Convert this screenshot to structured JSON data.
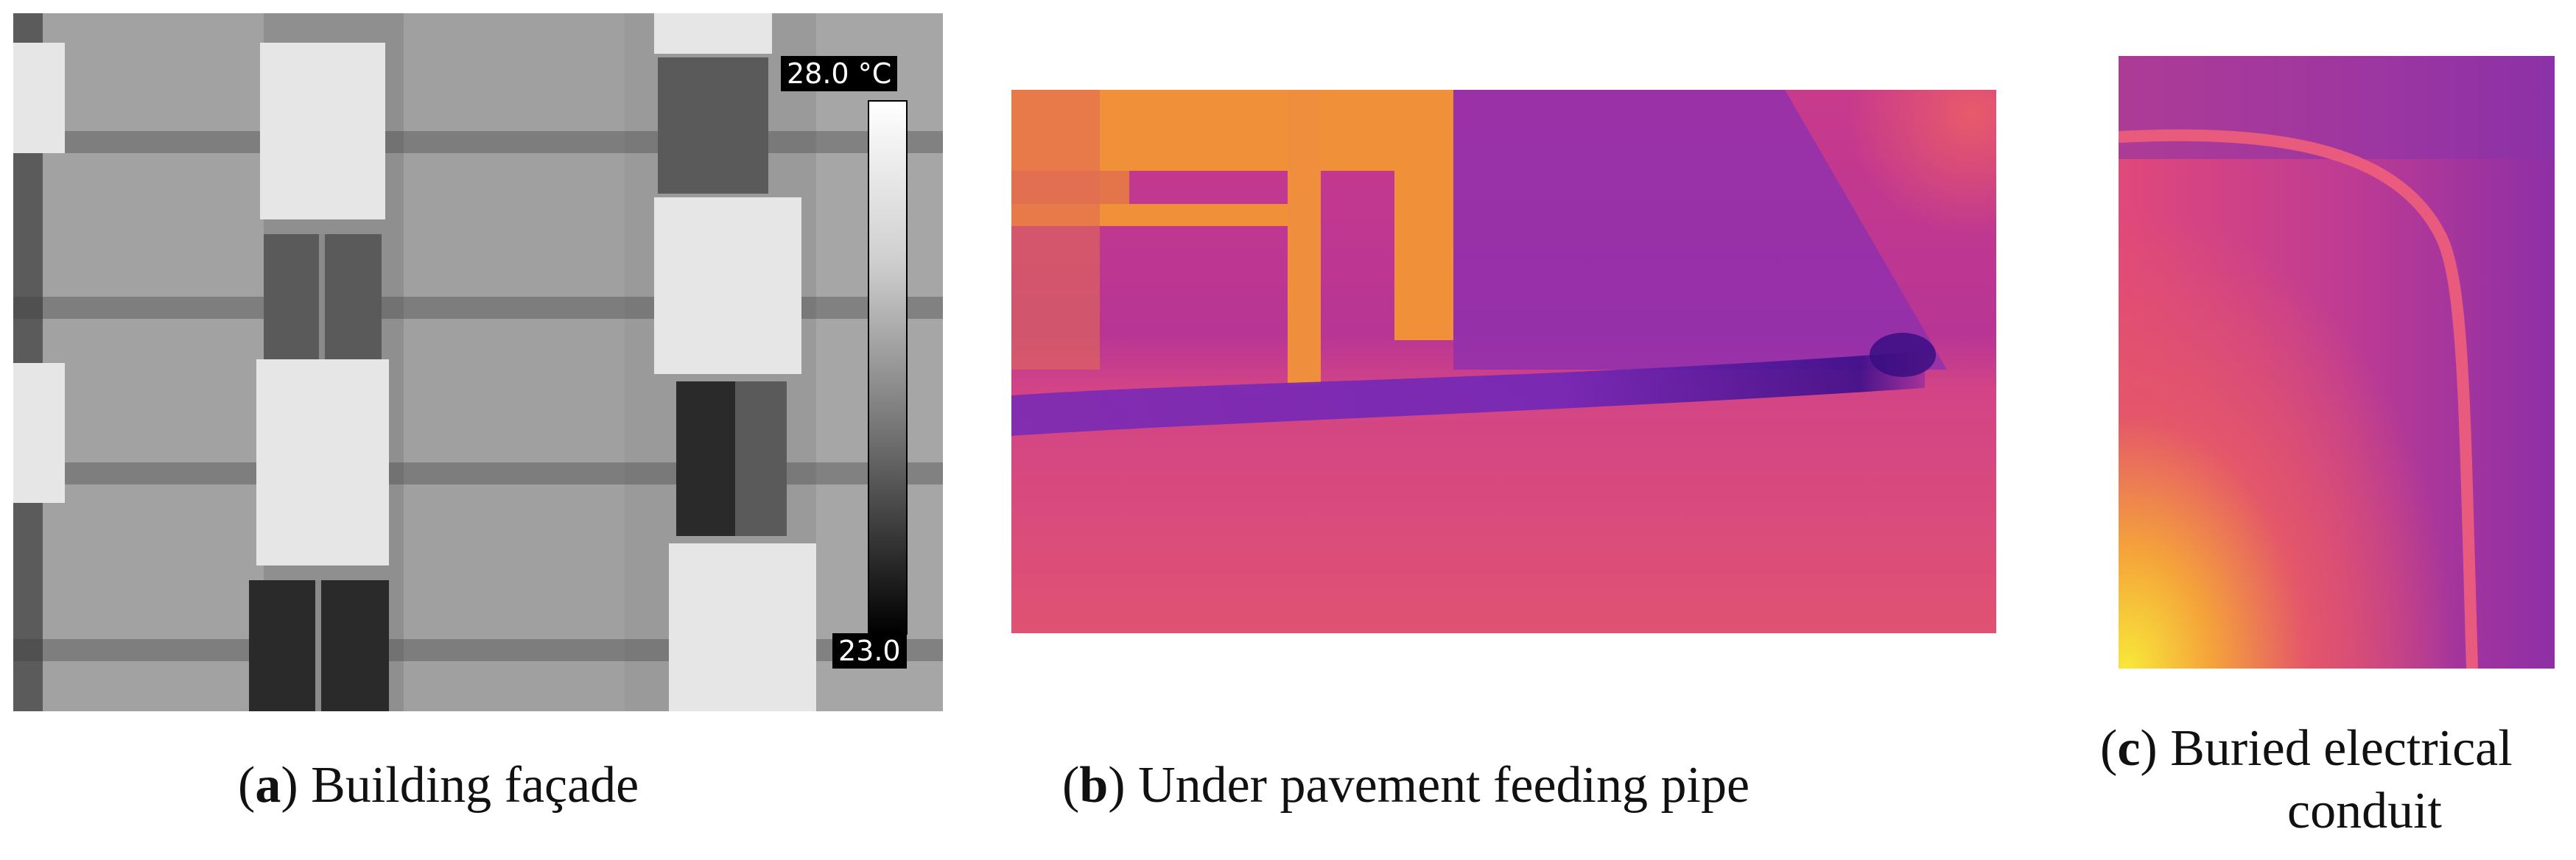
{
  "panels": [
    {
      "id": "a",
      "letter": "a",
      "caption": "Building façade",
      "scale": {
        "max_label": "28.0 °C",
        "min_label": "23.0",
        "colormap": "grayscale"
      }
    },
    {
      "id": "b",
      "letter": "b",
      "caption": "Under pavement feeding pipe",
      "colormap": "ironbow"
    },
    {
      "id": "c",
      "letter": "c",
      "caption_line1": "Buried electrical",
      "caption_line2": "conduit",
      "colormap": "ironbow"
    }
  ],
  "colors": {
    "purple": "#6a1fb5",
    "magenta": "#d4407c",
    "orange": "#f59a2b",
    "yellow": "#f5e33a"
  }
}
